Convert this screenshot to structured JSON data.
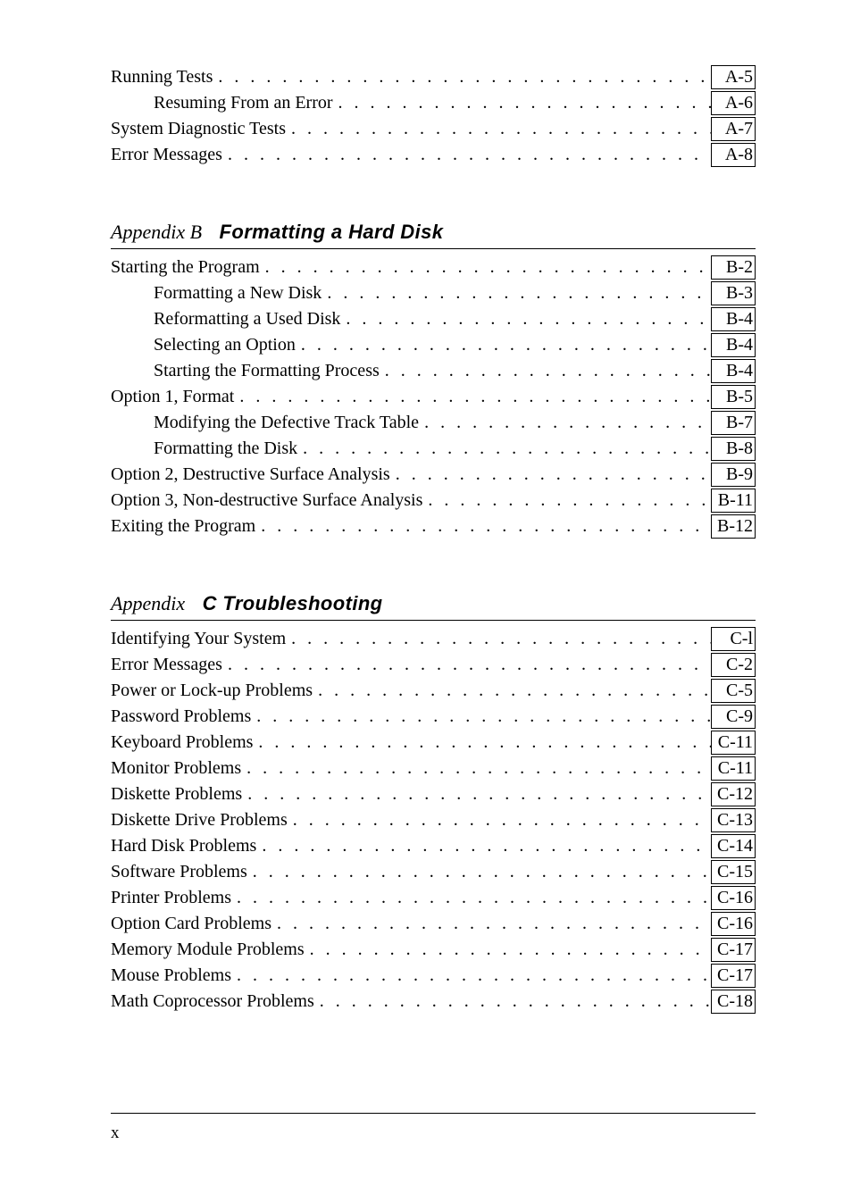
{
  "sections": {
    "first": {
      "entries": [
        {
          "label": "Running Tests",
          "page": "A-5",
          "indent": 0
        },
        {
          "label": "Resuming From an Error",
          "page": "A-6",
          "indent": 1
        },
        {
          "label": "System Diagnostic Tests",
          "page": "A-7",
          "indent": 0
        },
        {
          "label": "Error Messages",
          "page": "A-8",
          "indent": 0
        }
      ]
    },
    "appendixB": {
      "prefix": "Appendix B",
      "title": "Formatting a Hard Disk",
      "entries": [
        {
          "label": "Starting the Program",
          "page": "B-2",
          "indent": 0
        },
        {
          "label": "Formatting a New Disk",
          "page": "B-3",
          "indent": 1
        },
        {
          "label": "Reformatting a Used Disk",
          "page": "B-4",
          "indent": 1
        },
        {
          "label": "Selecting an Option",
          "page": "B-4",
          "indent": 1
        },
        {
          "label": "Starting the Formatting Process",
          "page": "B-4",
          "indent": 1
        },
        {
          "label": "Option 1, Format",
          "page": "B-5",
          "indent": 0
        },
        {
          "label": "Modifying the Defective Track Table",
          "page": "B-7",
          "indent": 1
        },
        {
          "label": "Formatting the Disk",
          "page": "B-8",
          "indent": 1
        },
        {
          "label": "Option 2, Destructive Surface Analysis",
          "page": "B-9",
          "indent": 0
        },
        {
          "label": "Option 3, Non-destructive Surface Analysis",
          "page": "B-11",
          "indent": 0
        },
        {
          "label": "Exiting the Program",
          "page": "B-12",
          "indent": 0
        }
      ]
    },
    "appendixC": {
      "prefix": "Appendix",
      "title": "C Troubleshooting",
      "entries": [
        {
          "label": "Identifying Your System",
          "page": "C-l",
          "indent": 0
        },
        {
          "label": "Error Messages",
          "page": "C-2",
          "indent": 0
        },
        {
          "label": "Power or Lock-up Problems",
          "page": "C-5",
          "indent": 0
        },
        {
          "label": "Password Problems",
          "page": "C-9",
          "indent": 0
        },
        {
          "label": "Keyboard Problems",
          "page": "C-11",
          "indent": 0
        },
        {
          "label": "Monitor Problems",
          "page": "C-11",
          "indent": 0
        },
        {
          "label": "Diskette Problems",
          "page": "C-12",
          "indent": 0
        },
        {
          "label": "Diskette Drive Problems",
          "page": "C-13",
          "indent": 0
        },
        {
          "label": "Hard Disk Problems",
          "page": "C-14",
          "indent": 0
        },
        {
          "label": "Software Problems",
          "page": "C-15",
          "indent": 0
        },
        {
          "label": "Printer Problems",
          "page": "C-16",
          "indent": 0
        },
        {
          "label": "Option Card Problems",
          "page": "C-16",
          "indent": 0
        },
        {
          "label": "Memory Module Problems",
          "page": "C-17",
          "indent": 0
        },
        {
          "label": "Mouse Problems",
          "page": "C-17",
          "indent": 0
        },
        {
          "label": "Math Coprocessor Problems",
          "page": "C-18",
          "indent": 0
        }
      ]
    }
  },
  "footer": {
    "pageNumber": "x"
  }
}
